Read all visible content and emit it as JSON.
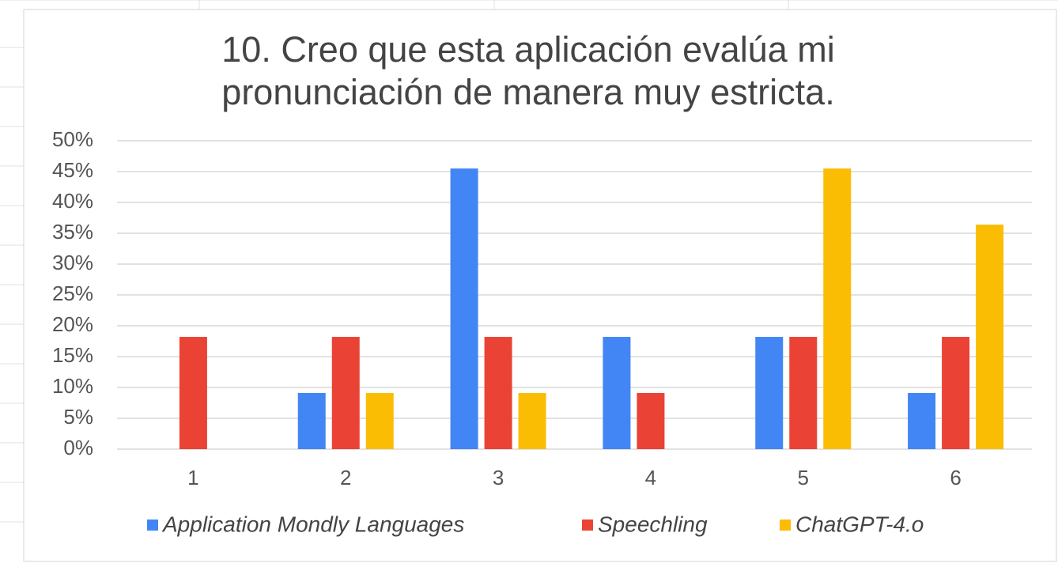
{
  "chart_data": {
    "type": "bar",
    "title": "10. Creo que esta aplicación evalúa mi pronunciación de manera muy estricta.",
    "categories": [
      "1",
      "2",
      "3",
      "4",
      "5",
      "6"
    ],
    "series": [
      {
        "name": "Application Mondly Languages",
        "color": "#4285f4",
        "values": [
          0,
          9.1,
          45.5,
          18.2,
          18.2,
          9.1
        ]
      },
      {
        "name": "Speechling",
        "color": "#ea4335",
        "values": [
          18.2,
          18.2,
          18.2,
          9.1,
          18.2,
          18.2
        ]
      },
      {
        "name": "ChatGPT-4.o",
        "color": "#fbbc04",
        "values": [
          0,
          9.1,
          9.1,
          0,
          45.5,
          36.4
        ]
      }
    ],
    "ylim": [
      0,
      50
    ],
    "yticks": [
      {
        "value": 0,
        "label": "0%"
      },
      {
        "value": 5,
        "label": "5%"
      },
      {
        "value": 10,
        "label": "10%"
      },
      {
        "value": 15,
        "label": "15%"
      },
      {
        "value": 20,
        "label": "20%"
      },
      {
        "value": 25,
        "label": "25%"
      },
      {
        "value": 30,
        "label": "30%"
      },
      {
        "value": 35,
        "label": "35%"
      },
      {
        "value": 40,
        "label": "40%"
      },
      {
        "value": 45,
        "label": "45%"
      },
      {
        "value": 50,
        "label": "50%"
      }
    ],
    "grid": true,
    "legend": "bottom"
  }
}
